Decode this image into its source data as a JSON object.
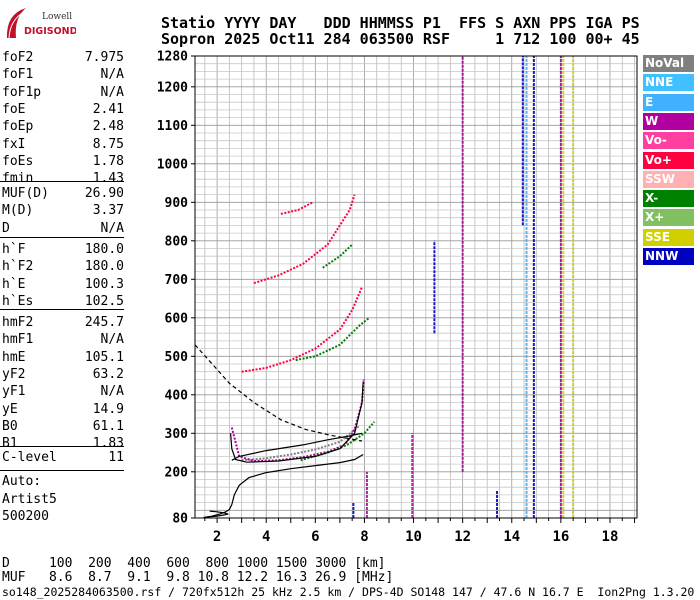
{
  "logo": {
    "line1": "Lowell",
    "line2": "DIGISONDE"
  },
  "header": {
    "line1": "Statio YYYY DAY   DDD HHMMSS P1  FFS S AXN PPS IGA PS",
    "line2": "Sopron 2025 Oct11 284 063500 RSF     1 712 100 00+ 45"
  },
  "params_group1": [
    {
      "k": "foF2",
      "v": "7.975"
    },
    {
      "k": "foF1",
      "v": "N/A"
    },
    {
      "k": "foF1p",
      "v": "N/A"
    },
    {
      "k": "foE",
      "v": "2.41"
    },
    {
      "k": "foEp",
      "v": "2.48"
    },
    {
      "k": "fxI",
      "v": "8.75"
    },
    {
      "k": "foEs",
      "v": "1.78"
    },
    {
      "k": "fmin",
      "v": "1.43"
    }
  ],
  "params_group2": [
    {
      "k": "MUF(D)",
      "v": "26.90"
    },
    {
      "k": "M(D)",
      "v": "3.37"
    },
    {
      "k": "D",
      "v": "N/A"
    }
  ],
  "params_group3": [
    {
      "k": "h`F",
      "v": "180.0"
    },
    {
      "k": "h`F2",
      "v": "180.0"
    },
    {
      "k": "h`E",
      "v": "100.3"
    },
    {
      "k": "h`Es",
      "v": "102.5"
    }
  ],
  "params_group4": [
    {
      "k": "hmF2",
      "v": "245.7"
    },
    {
      "k": "hmF1",
      "v": "N/A"
    },
    {
      "k": "hmE",
      "v": "105.1"
    },
    {
      "k": "yF2",
      "v": "63.2"
    },
    {
      "k": "yF1",
      "v": "N/A"
    },
    {
      "k": "yE",
      "v": "14.9"
    },
    {
      "k": "B0",
      "v": "61.1"
    },
    {
      "k": "B1",
      "v": "1.83"
    }
  ],
  "clevel": {
    "k": "C-level",
    "v": "11"
  },
  "auto": {
    "line1": "Auto:",
    "line2": "Artist5",
    "line3": "500200"
  },
  "legend": [
    {
      "label": "NoVal",
      "bg": "#808080",
      "fg": "#ffffff"
    },
    {
      "label": "NNE",
      "bg": "#40c0ff",
      "fg": "#ffffff"
    },
    {
      "label": "E",
      "bg": "#40b0ff",
      "fg": "#ffffff"
    },
    {
      "label": "W",
      "bg": "#b000a0",
      "fg": "#ffffff"
    },
    {
      "label": "Vo-",
      "bg": "#ff40a0",
      "fg": "#ffffff"
    },
    {
      "label": "Vo+",
      "bg": "#ff0040",
      "fg": "#ffffff"
    },
    {
      "label": "SSW",
      "bg": "#ffb0b0",
      "fg": "#ffffff"
    },
    {
      "label": "X-",
      "bg": "#008000",
      "fg": "#ffffff"
    },
    {
      "label": "X+",
      "bg": "#80c060",
      "fg": "#ffffff"
    },
    {
      "label": "SSE",
      "bg": "#d0d000",
      "fg": "#ffffff"
    },
    {
      "label": "NNW",
      "bg": "#0000c0",
      "fg": "#ffffff"
    }
  ],
  "footer": {
    "d_row": "D     100  200  400  600  800 1000 1500 3000 [km]",
    "muf_row": "MUF   8.6  8.7  9.1  9.8 10.8 12.2 16.3 26.9 [MHz]",
    "filename": "so148_2025284063500.rsf / 720fx512h 25 kHz 2.5 km / DPS-4D SO148 147 / 47.6 N 16.7 E  Ion2Png 1.3.20"
  },
  "chart_data": {
    "type": "scatter",
    "title": "",
    "xlabel": "",
    "ylabel": "",
    "xlim": [
      1.1,
      19.1
    ],
    "ylim": [
      80,
      1280
    ],
    "xticks": [
      2,
      4,
      6,
      8,
      10,
      12,
      14,
      16,
      18
    ],
    "yticks": [
      80,
      200,
      300,
      400,
      500,
      600,
      700,
      800,
      900,
      1000,
      1100,
      1200,
      1280
    ],
    "grid": true,
    "legend_position": "right",
    "profile_curves": [
      {
        "color": "#000000",
        "style": "solid",
        "points": [
          [
            1.45,
            81
          ],
          [
            1.8,
            85
          ],
          [
            2.1,
            90
          ],
          [
            2.35,
            96
          ],
          [
            2.5,
            102
          ],
          [
            2.6,
            115
          ],
          [
            2.7,
            140
          ],
          [
            2.9,
            165
          ],
          [
            3.3,
            185
          ],
          [
            4.0,
            198
          ],
          [
            5.0,
            208
          ],
          [
            6.0,
            216
          ],
          [
            7.0,
            224
          ],
          [
            7.6,
            232
          ],
          [
            7.95,
            245
          ]
        ]
      },
      {
        "color": "#000000",
        "style": "solid",
        "points": [
          [
            1.5,
            82
          ],
          [
            2.0,
            85
          ],
          [
            2.3,
            88
          ],
          [
            2.45,
            90
          ],
          [
            2.3,
            93
          ],
          [
            2.0,
            96
          ],
          [
            1.7,
            98
          ]
        ]
      },
      {
        "color": "#000000",
        "style": "dashed",
        "points": [
          [
            1.1,
            530
          ],
          [
            1.8,
            480
          ],
          [
            2.5,
            430
          ],
          [
            3.5,
            380
          ],
          [
            4.6,
            335
          ],
          [
            5.6,
            310
          ],
          [
            6.6,
            295
          ],
          [
            7.9,
            280
          ]
        ]
      },
      {
        "color": "#000000",
        "style": "solid",
        "points": [
          [
            2.6,
            230
          ],
          [
            2.9,
            240
          ],
          [
            4.0,
            255
          ],
          [
            5.5,
            270
          ],
          [
            6.5,
            283
          ],
          [
            7.3,
            292
          ],
          [
            7.9,
            300
          ]
        ]
      },
      {
        "color": "#000000",
        "style": "solid",
        "points": [
          [
            2.55,
            300
          ],
          [
            2.6,
            260
          ],
          [
            2.75,
            232
          ],
          [
            3.2,
            225
          ],
          [
            4.5,
            228
          ],
          [
            6.0,
            240
          ],
          [
            7.0,
            260
          ],
          [
            7.6,
            300
          ],
          [
            7.9,
            380
          ],
          [
            7.95,
            435
          ]
        ]
      }
    ],
    "traces": [
      {
        "type": "X+",
        "color": "#808080",
        "points": [
          [
            3.0,
            230
          ],
          [
            4.0,
            235
          ],
          [
            5.0,
            245
          ],
          [
            6.0,
            258
          ],
          [
            7.0,
            278
          ],
          [
            7.8,
            320
          ]
        ]
      },
      {
        "type": "W",
        "color": "#b000a0",
        "points": [
          [
            2.6,
            315
          ],
          [
            2.9,
            240
          ],
          [
            3.5,
            228
          ],
          [
            4.5,
            230
          ],
          [
            5.5,
            238
          ],
          [
            6.5,
            252
          ],
          [
            7.2,
            270
          ],
          [
            7.6,
            310
          ],
          [
            7.9,
            380
          ],
          [
            7.98,
            440
          ]
        ]
      },
      {
        "type": "Vo+",
        "color": "#ff0040",
        "points": [
          [
            3.0,
            460
          ],
          [
            4.0,
            470
          ],
          [
            5.0,
            490
          ],
          [
            6.0,
            520
          ],
          [
            7.0,
            570
          ],
          [
            7.5,
            620
          ],
          [
            7.9,
            680
          ]
        ]
      },
      {
        "type": "X-",
        "color": "#008000",
        "points": [
          [
            5.2,
            490
          ],
          [
            6.0,
            500
          ],
          [
            7.0,
            530
          ],
          [
            7.8,
            580
          ],
          [
            8.2,
            600
          ]
        ]
      },
      {
        "type": "Vo+",
        "color": "#ff0040",
        "points": [
          [
            3.5,
            690
          ],
          [
            4.5,
            710
          ],
          [
            5.5,
            740
          ],
          [
            6.5,
            790
          ],
          [
            7.4,
            880
          ],
          [
            7.6,
            920
          ]
        ]
      },
      {
        "type": "X-",
        "color": "#008000",
        "points": [
          [
            6.3,
            730
          ],
          [
            7.0,
            760
          ],
          [
            7.5,
            790
          ]
        ]
      },
      {
        "type": "Vo+",
        "color": "#ff0040",
        "points": [
          [
            4.6,
            870
          ],
          [
            5.3,
            880
          ],
          [
            5.9,
            900
          ]
        ]
      },
      {
        "type": "X-",
        "color": "#008000",
        "points": [
          [
            5.4,
            230
          ],
          [
            6.5,
            250
          ],
          [
            7.3,
            270
          ],
          [
            8.0,
            300
          ],
          [
            8.4,
            330
          ]
        ]
      }
    ],
    "vertical_bands": [
      {
        "x": 7.55,
        "color": "#0000c0",
        "ymin": 80,
        "ymax": 120
      },
      {
        "x": 8.1,
        "color": "#b000a0",
        "ymin": 80,
        "ymax": 200
      },
      {
        "x": 10.85,
        "color": "#0000c0",
        "ymin": 560,
        "ymax": 800
      },
      {
        "x": 12.0,
        "color": "#b000a0",
        "ymin": 200,
        "ymax": 1280
      },
      {
        "x": 14.45,
        "color": "#0000c0",
        "ymin": 840,
        "ymax": 1280
      },
      {
        "x": 14.6,
        "color": "#40b0ff",
        "ymin": 80,
        "ymax": 1280
      },
      {
        "x": 14.9,
        "color": "#0000c0",
        "ymin": 80,
        "ymax": 1280
      },
      {
        "x": 16.0,
        "color": "#b000a0",
        "ymin": 80,
        "ymax": 1280
      },
      {
        "x": 16.1,
        "color": "#d0d000",
        "ymin": 80,
        "ymax": 1280
      },
      {
        "x": 16.5,
        "color": "#d0d000",
        "ymin": 80,
        "ymax": 1280
      },
      {
        "x": 9.95,
        "color": "#b000a0",
        "ymin": 80,
        "ymax": 300
      },
      {
        "x": 13.4,
        "color": "#0000c0",
        "ymin": 80,
        "ymax": 150
      }
    ]
  }
}
